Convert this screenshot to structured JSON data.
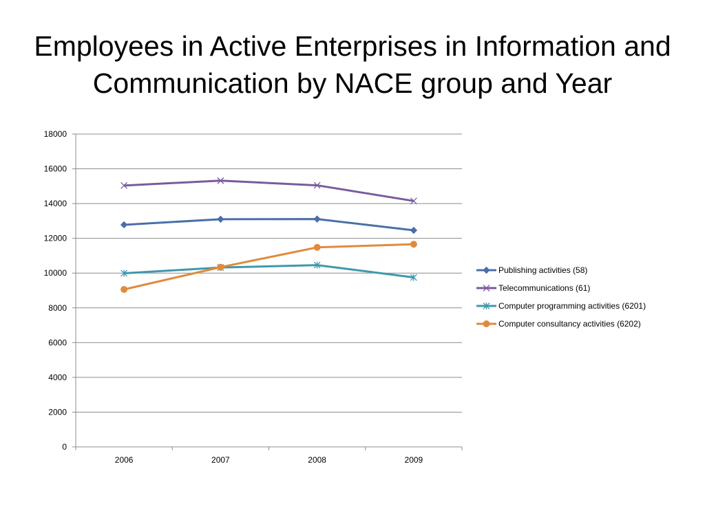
{
  "slide": {
    "title": "Employees in Active Enterprises in Information and Communication by NACE group and Year"
  },
  "chart_data": {
    "type": "line",
    "title": "Employees in Active Enterprises in Information and Communication by NACE group and Year",
    "xlabel": "",
    "ylabel": "",
    "categories": [
      "2006",
      "2007",
      "2008",
      "2009"
    ],
    "ylim": [
      0,
      18000
    ],
    "yticks": [
      0,
      2000,
      4000,
      6000,
      8000,
      10000,
      12000,
      14000,
      16000,
      18000
    ],
    "grid": true,
    "legend_position": "right",
    "series": [
      {
        "name": "Publishing activities (58)",
        "values": [
          12780,
          13100,
          13110,
          12460
        ],
        "color": "#4a6fa8",
        "marker": "diamond"
      },
      {
        "name": "Telecommunications (61)",
        "values": [
          15040,
          15320,
          15050,
          14150
        ],
        "color": "#7a5a9e",
        "marker": "x"
      },
      {
        "name": "Computer programming activities (6201)",
        "values": [
          9990,
          10320,
          10460,
          9750
        ],
        "color": "#3e98ad",
        "marker": "star"
      },
      {
        "name": "Computer consultancy activities (6202)",
        "values": [
          9060,
          10340,
          11480,
          11660
        ],
        "color": "#e08a3c",
        "marker": "circle"
      }
    ]
  }
}
